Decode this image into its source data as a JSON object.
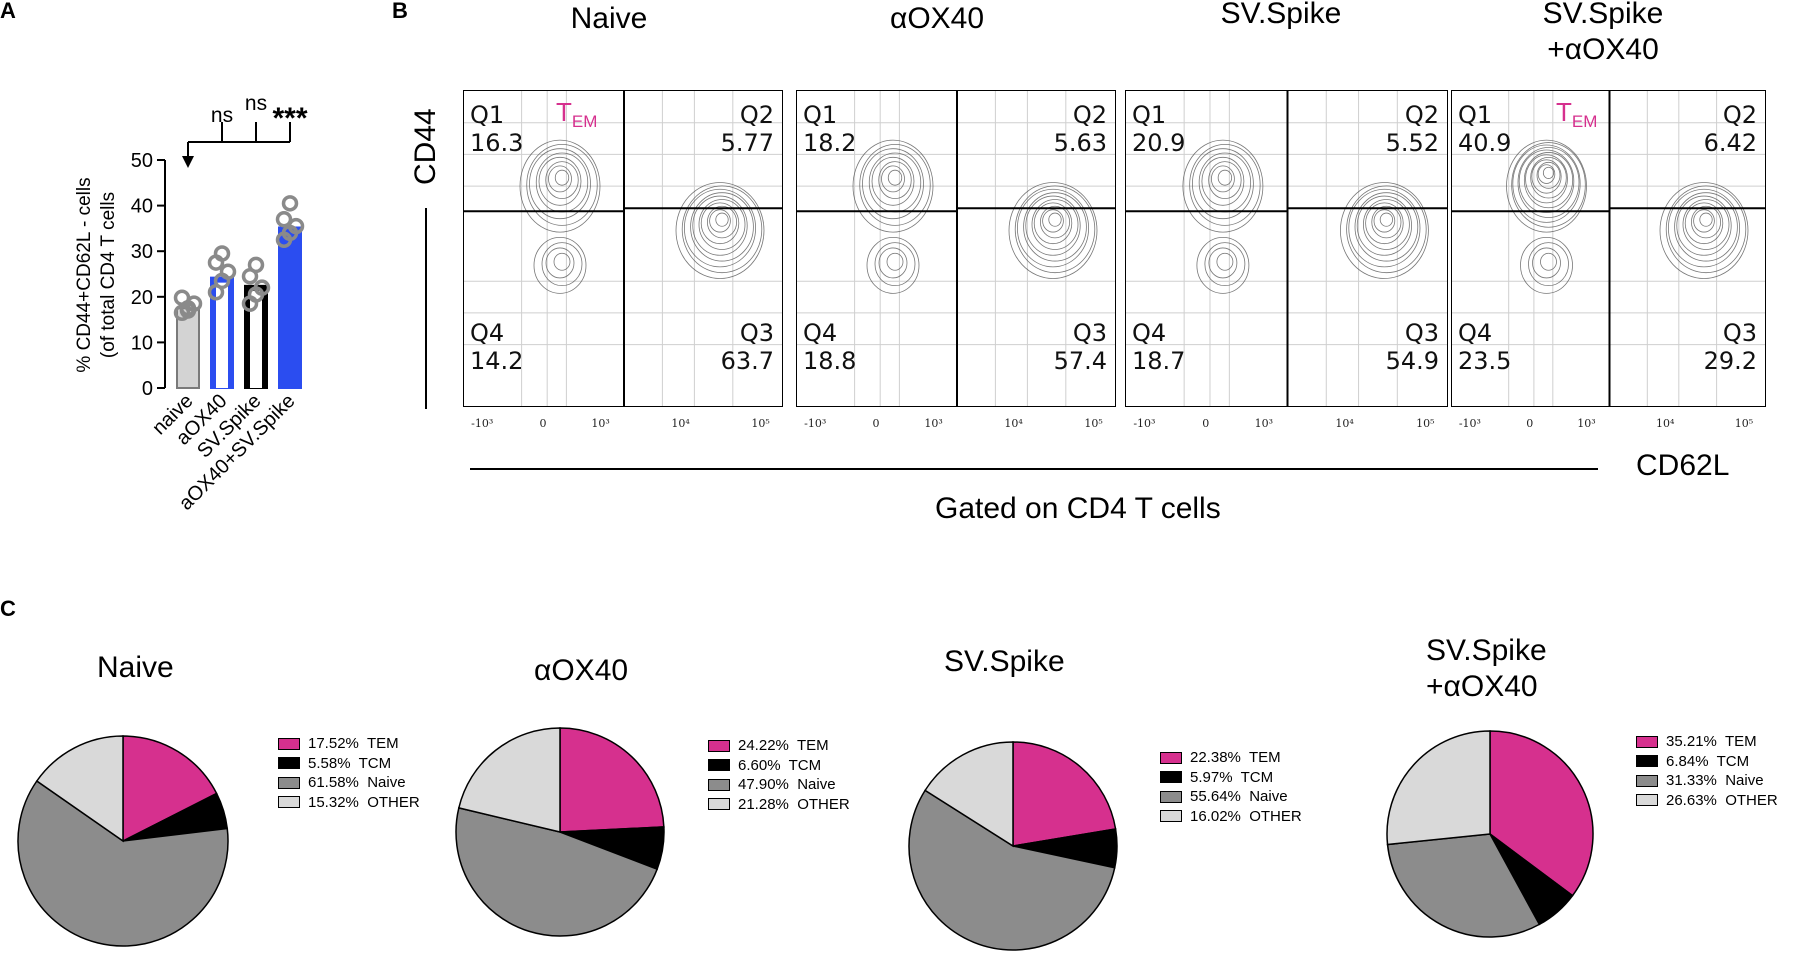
{
  "panels": {
    "a": "A",
    "b": "B",
    "c": "C"
  },
  "colors": {
    "tem": "#d6308e",
    "tcm": "#000000",
    "naive": "#8c8c8c",
    "other": "#d9d9d9",
    "bar_naive": "#d3d3d3",
    "bar_aox40": "#2b4df0",
    "bar_sv": "#000000",
    "bar_combo": "#2b4df0"
  },
  "chart_data": [
    {
      "type": "bar",
      "id": "panel-a",
      "ylabel_line1": "% CD44+CD62L - cells",
      "ylabel_line2": "(of total CD4 T cells",
      "ylim": [
        0,
        50
      ],
      "yticks": [
        0,
        10,
        20,
        30,
        40,
        50
      ],
      "categories": [
        "naive",
        "aOX40",
        "SV.Spike",
        "aOX40+SV.Spike"
      ],
      "values": [
        17.5,
        24.2,
        22.4,
        35.2
      ],
      "points": [
        [
          16.5,
          17.5,
          18.5,
          19.8,
          17.0
        ],
        [
          21.0,
          23.5,
          25.5,
          27.5,
          29.5
        ],
        [
          18.5,
          20.5,
          22.0,
          24.5,
          27.0
        ],
        [
          32.5,
          34.0,
          35.5,
          37.0,
          40.5
        ]
      ],
      "significance": [
        "ns",
        "ns",
        "***"
      ]
    },
    {
      "type": "pie",
      "id": "pie-naive",
      "title": "Naive",
      "slices": [
        {
          "label": "TEM",
          "value": 17.52,
          "text": "17.52%  TEM"
        },
        {
          "label": "TCM",
          "value": 5.58,
          "text": "5.58%  TCM"
        },
        {
          "label": "Naive",
          "value": 61.58,
          "text": "61.58%  Naive"
        },
        {
          "label": "OTHER",
          "value": 15.32,
          "text": "15.32%  OTHER"
        }
      ]
    },
    {
      "type": "pie",
      "id": "pie-aox40",
      "title": "αOX40",
      "slices": [
        {
          "label": "TEM",
          "value": 24.22,
          "text": "24.22%  TEM"
        },
        {
          "label": "TCM",
          "value": 6.6,
          "text": "6.60%  TCM"
        },
        {
          "label": "Naive",
          "value": 47.9,
          "text": "47.90%  Naive"
        },
        {
          "label": "OTHER",
          "value": 21.28,
          "text": "21.28%  OTHER"
        }
      ]
    },
    {
      "type": "pie",
      "id": "pie-svspike",
      "title": "SV.Spike",
      "slices": [
        {
          "label": "TEM",
          "value": 22.38,
          "text": "22.38%  TEM"
        },
        {
          "label": "TCM",
          "value": 5.97,
          "text": "5.97%  TCM"
        },
        {
          "label": "Naive",
          "value": 55.64,
          "text": "55.64%  Naive"
        },
        {
          "label": "OTHER",
          "value": 16.02,
          "text": "16.02%  OTHER"
        }
      ]
    },
    {
      "type": "pie",
      "id": "pie-combo",
      "title_line1": "SV.Spike",
      "title_line2": "+αOX40",
      "slices": [
        {
          "label": "TEM",
          "value": 35.21,
          "text": "35.21%  TEM"
        },
        {
          "label": "TCM",
          "value": 6.84,
          "text": "6.84%  TCM"
        },
        {
          "label": "Naive",
          "value": 31.33,
          "text": "31.33%  Naive"
        },
        {
          "label": "OTHER",
          "value": 26.63,
          "text": "26.63%  OTHER"
        }
      ]
    }
  ],
  "flow": {
    "y_axis_label": "CD44",
    "x_axis_label": "CD62L",
    "gated_label": "Gated on CD4 T cells",
    "tem_main": "T",
    "tem_sub": "EM",
    "x_ticks": [
      "-10³",
      "0",
      "10³",
      "10⁴",
      "10⁵"
    ],
    "plots": [
      {
        "title_line1": "Naive",
        "title_line2": "",
        "q1": "16.3",
        "q2": "5.77",
        "q3": "63.7",
        "q4": "14.2",
        "show_tem": true
      },
      {
        "title_line1": "αOX40",
        "title_line2": "",
        "q1": "18.2",
        "q2": "5.63",
        "q3": "57.4",
        "q4": "18.8",
        "show_tem": false
      },
      {
        "title_line1": "SV.Spike",
        "title_line2": "",
        "q1": "20.9",
        "q2": "5.52",
        "q3": "54.9",
        "q4": "18.7",
        "show_tem": false
      },
      {
        "title_line1": "SV.Spike",
        "title_line2": "+αOX40",
        "q1": "40.9",
        "q2": "6.42",
        "q3": "29.2",
        "q4": "23.5",
        "show_tem": true
      }
    ],
    "quadrant_names": {
      "q1": "Q1",
      "q2": "Q2",
      "q3": "Q3",
      "q4": "Q4"
    }
  }
}
